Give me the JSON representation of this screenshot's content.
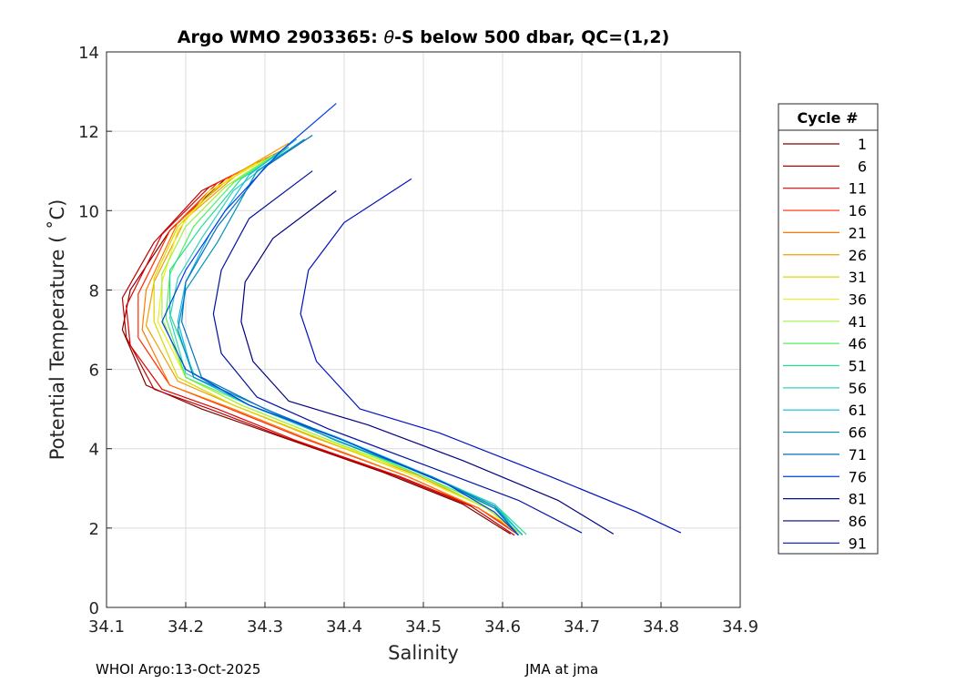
{
  "chart_data": {
    "type": "line",
    "title": "Argo WMO 2903365: θ-S below 500 dbar,  QC=(1,2)",
    "title_parts": [
      "Argo WMO 2903365: ",
      "θ",
      "-S below 500 dbar,  QC=(1,2)"
    ],
    "xlabel": "Salinity",
    "ylabel": "Potential Temperature ( ˚C)",
    "xlim": [
      34.1,
      34.9
    ],
    "ylim": [
      0,
      14
    ],
    "xticks": [
      "34.1",
      "34.2",
      "34.3",
      "34.4",
      "34.5",
      "34.6",
      "34.7",
      "34.8",
      "34.9"
    ],
    "yticks": [
      "0",
      "2",
      "4",
      "6",
      "8",
      "10",
      "12",
      "14"
    ],
    "grid": true,
    "legend": {
      "title": "Cycle #",
      "position": "right",
      "entries": [
        {
          "label": "1",
          "color": "#800000"
        },
        {
          "label": "6",
          "color": "#b80000"
        },
        {
          "label": "11",
          "color": "#e00000"
        },
        {
          "label": "16",
          "color": "#ff2a00"
        },
        {
          "label": "21",
          "color": "#ff7700"
        },
        {
          "label": "26",
          "color": "#f0a000"
        },
        {
          "label": "31",
          "color": "#d8d800"
        },
        {
          "label": "36",
          "color": "#f0f020"
        },
        {
          "label": "41",
          "color": "#a0f040"
        },
        {
          "label": "46",
          "color": "#50f060"
        },
        {
          "label": "51",
          "color": "#20e090"
        },
        {
          "label": "56",
          "color": "#30d0c0"
        },
        {
          "label": "61",
          "color": "#10b8e0"
        },
        {
          "label": "66",
          "color": "#0090c0"
        },
        {
          "label": "71",
          "color": "#0070c0"
        },
        {
          "label": "76",
          "color": "#0040e0"
        },
        {
          "label": "81",
          "color": "#0010a0"
        },
        {
          "label": "86",
          "color": "#000080"
        },
        {
          "label": "91",
          "color": "#0010c0"
        }
      ]
    },
    "series": [
      {
        "name": "1",
        "color": "#800000",
        "points": [
          [
            34.32,
            11.5
          ],
          [
            34.25,
            10.8
          ],
          [
            34.18,
            9.5
          ],
          [
            34.13,
            8.0
          ],
          [
            34.12,
            7.0
          ],
          [
            34.15,
            5.6
          ],
          [
            34.22,
            5.0
          ],
          [
            34.32,
            4.3
          ],
          [
            34.45,
            3.4
          ],
          [
            34.55,
            2.6
          ],
          [
            34.61,
            1.85
          ]
        ]
      },
      {
        "name": "6",
        "color": "#b80000",
        "points": [
          [
            34.3,
            11.3
          ],
          [
            34.22,
            10.5
          ],
          [
            34.16,
            9.2
          ],
          [
            34.12,
            7.8
          ],
          [
            34.125,
            6.8
          ],
          [
            34.16,
            5.5
          ],
          [
            34.23,
            5.0
          ],
          [
            34.33,
            4.25
          ],
          [
            34.46,
            3.35
          ],
          [
            34.56,
            2.55
          ],
          [
            34.615,
            1.82
          ]
        ]
      },
      {
        "name": "11",
        "color": "#e00000",
        "points": [
          [
            34.31,
            11.4
          ],
          [
            34.23,
            10.6
          ],
          [
            34.17,
            9.4
          ],
          [
            34.125,
            7.6
          ],
          [
            34.13,
            6.6
          ],
          [
            34.17,
            5.5
          ],
          [
            34.24,
            5.0
          ],
          [
            34.34,
            4.2
          ],
          [
            34.47,
            3.3
          ],
          [
            34.57,
            2.5
          ],
          [
            34.62,
            1.83
          ]
        ]
      },
      {
        "name": "16",
        "color": "#ff2a00",
        "points": [
          [
            34.33,
            11.6
          ],
          [
            34.24,
            10.7
          ],
          [
            34.18,
            9.5
          ],
          [
            34.14,
            7.9
          ],
          [
            34.14,
            6.8
          ],
          [
            34.18,
            5.6
          ],
          [
            34.25,
            5.05
          ],
          [
            34.35,
            4.25
          ],
          [
            34.48,
            3.3
          ],
          [
            34.57,
            2.5
          ],
          [
            34.62,
            1.84
          ]
        ]
      },
      {
        "name": "21",
        "color": "#ff7700",
        "points": [
          [
            34.32,
            11.5
          ],
          [
            34.26,
            10.9
          ],
          [
            34.19,
            9.7
          ],
          [
            34.15,
            8.0
          ],
          [
            34.145,
            7.0
          ],
          [
            34.18,
            5.6
          ],
          [
            34.26,
            5.0
          ],
          [
            34.36,
            4.2
          ],
          [
            34.48,
            3.3
          ],
          [
            34.57,
            2.5
          ],
          [
            34.625,
            1.84
          ]
        ]
      },
      {
        "name": "26",
        "color": "#f0a000",
        "points": [
          [
            34.33,
            11.7
          ],
          [
            34.27,
            11.0
          ],
          [
            34.2,
            9.8
          ],
          [
            34.16,
            8.2
          ],
          [
            34.15,
            7.1
          ],
          [
            34.19,
            5.7
          ],
          [
            34.26,
            5.1
          ],
          [
            34.36,
            4.3
          ],
          [
            34.49,
            3.35
          ],
          [
            34.58,
            2.5
          ],
          [
            34.625,
            1.83
          ]
        ]
      },
      {
        "name": "31",
        "color": "#d8d800",
        "points": [
          [
            34.3,
            11.3
          ],
          [
            34.24,
            10.6
          ],
          [
            34.19,
            9.6
          ],
          [
            34.16,
            8.3
          ],
          [
            34.16,
            7.2
          ],
          [
            34.19,
            5.8
          ],
          [
            34.26,
            5.1
          ],
          [
            34.37,
            4.25
          ],
          [
            34.49,
            3.3
          ],
          [
            34.58,
            2.5
          ],
          [
            34.62,
            1.84
          ]
        ]
      },
      {
        "name": "36",
        "color": "#f0f020",
        "points": [
          [
            34.29,
            11.2
          ],
          [
            34.23,
            10.5
          ],
          [
            34.19,
            9.5
          ],
          [
            34.17,
            8.2
          ],
          [
            34.165,
            7.2
          ],
          [
            34.2,
            5.8
          ],
          [
            34.27,
            5.1
          ],
          [
            34.37,
            4.3
          ],
          [
            34.49,
            3.3
          ],
          [
            34.58,
            2.5
          ],
          [
            34.62,
            1.83
          ]
        ]
      },
      {
        "name": "41",
        "color": "#a0f040",
        "points": [
          [
            34.31,
            11.4
          ],
          [
            34.25,
            10.6
          ],
          [
            34.2,
            9.6
          ],
          [
            34.17,
            8.4
          ],
          [
            34.17,
            7.3
          ],
          [
            34.2,
            5.8
          ],
          [
            34.27,
            5.1
          ],
          [
            34.37,
            4.3
          ],
          [
            34.5,
            3.3
          ],
          [
            34.58,
            2.5
          ],
          [
            34.625,
            1.83
          ]
        ]
      },
      {
        "name": "46",
        "color": "#50f060",
        "points": [
          [
            34.32,
            11.5
          ],
          [
            34.26,
            10.7
          ],
          [
            34.21,
            9.6
          ],
          [
            34.18,
            8.4
          ],
          [
            34.175,
            7.3
          ],
          [
            34.2,
            5.8
          ],
          [
            34.28,
            5.1
          ],
          [
            34.38,
            4.3
          ],
          [
            34.5,
            3.3
          ],
          [
            34.59,
            2.5
          ],
          [
            34.625,
            1.84
          ]
        ]
      },
      {
        "name": "51",
        "color": "#20e090",
        "points": [
          [
            34.33,
            11.6
          ],
          [
            34.27,
            10.8
          ],
          [
            34.22,
            9.6
          ],
          [
            34.18,
            8.5
          ],
          [
            34.18,
            7.4
          ],
          [
            34.21,
            5.9
          ],
          [
            34.28,
            5.1
          ],
          [
            34.38,
            4.3
          ],
          [
            34.5,
            3.35
          ],
          [
            34.59,
            2.6
          ],
          [
            34.63,
            1.84
          ]
        ]
      },
      {
        "name": "56",
        "color": "#30d0c0",
        "points": [
          [
            34.33,
            11.6
          ],
          [
            34.26,
            10.5
          ],
          [
            34.22,
            9.3
          ],
          [
            34.19,
            8.3
          ],
          [
            34.18,
            7.3
          ],
          [
            34.2,
            5.9
          ],
          [
            34.28,
            5.1
          ],
          [
            34.38,
            4.3
          ],
          [
            34.51,
            3.3
          ],
          [
            34.59,
            2.6
          ],
          [
            34.625,
            1.82
          ]
        ]
      },
      {
        "name": "61",
        "color": "#10b8e0",
        "points": [
          [
            34.34,
            11.8
          ],
          [
            34.28,
            10.9
          ],
          [
            34.23,
            9.4
          ],
          [
            34.2,
            8.2
          ],
          [
            34.19,
            7.2
          ],
          [
            34.21,
            5.8
          ],
          [
            34.28,
            5.1
          ],
          [
            34.39,
            4.3
          ],
          [
            34.51,
            3.3
          ],
          [
            34.59,
            2.55
          ],
          [
            34.625,
            1.83
          ]
        ]
      },
      {
        "name": "66",
        "color": "#0090c0",
        "points": [
          [
            34.35,
            11.8
          ],
          [
            34.29,
            11.0
          ],
          [
            34.24,
            9.2
          ],
          [
            34.2,
            8.0
          ],
          [
            34.19,
            7.0
          ],
          [
            34.21,
            5.8
          ],
          [
            34.29,
            5.1
          ],
          [
            34.39,
            4.2
          ],
          [
            34.51,
            3.3
          ],
          [
            34.59,
            2.55
          ],
          [
            34.62,
            1.82
          ]
        ]
      },
      {
        "name": "71",
        "color": "#0070c0",
        "points": [
          [
            34.36,
            11.9
          ],
          [
            34.3,
            11.1
          ],
          [
            34.24,
            9.6
          ],
          [
            34.2,
            8.2
          ],
          [
            34.195,
            7.2
          ],
          [
            34.22,
            5.8
          ],
          [
            34.3,
            5.0
          ],
          [
            34.4,
            4.2
          ],
          [
            34.52,
            3.2
          ],
          [
            34.59,
            2.5
          ],
          [
            34.62,
            1.82
          ]
        ]
      },
      {
        "name": "76",
        "color": "#0040e0",
        "points": [
          [
            34.39,
            12.7
          ],
          [
            34.32,
            11.5
          ],
          [
            34.25,
            10.0
          ],
          [
            34.2,
            8.5
          ],
          [
            34.17,
            7.2
          ],
          [
            34.2,
            6.0
          ],
          [
            34.28,
            5.1
          ],
          [
            34.4,
            4.2
          ],
          [
            34.53,
            3.1
          ],
          [
            34.59,
            2.4
          ],
          [
            34.62,
            1.82
          ]
        ]
      },
      {
        "name": "81",
        "color": "#0010a0",
        "points": [
          [
            34.36,
            11.0
          ],
          [
            34.28,
            9.8
          ],
          [
            34.245,
            8.5
          ],
          [
            34.235,
            7.4
          ],
          [
            34.245,
            6.4
          ],
          [
            34.29,
            5.3
          ],
          [
            34.38,
            4.5
          ],
          [
            34.5,
            3.6
          ],
          [
            34.62,
            2.7
          ],
          [
            34.7,
            1.88
          ]
        ]
      },
      {
        "name": "86",
        "color": "#000080",
        "points": [
          [
            34.39,
            10.5
          ],
          [
            34.31,
            9.3
          ],
          [
            34.275,
            8.2
          ],
          [
            34.27,
            7.2
          ],
          [
            34.285,
            6.2
          ],
          [
            34.33,
            5.2
          ],
          [
            34.43,
            4.6
          ],
          [
            34.55,
            3.7
          ],
          [
            34.67,
            2.7
          ],
          [
            34.74,
            1.85
          ]
        ]
      },
      {
        "name": "91",
        "color": "#0010c0",
        "points": [
          [
            34.485,
            10.8
          ],
          [
            34.4,
            9.7
          ],
          [
            34.355,
            8.5
          ],
          [
            34.345,
            7.4
          ],
          [
            34.365,
            6.2
          ],
          [
            34.42,
            5.0
          ],
          [
            34.52,
            4.4
          ],
          [
            34.66,
            3.3
          ],
          [
            34.77,
            2.4
          ],
          [
            34.825,
            1.88
          ]
        ]
      }
    ]
  },
  "footer": {
    "left": "WHOI Argo:13-Oct-2025",
    "right": "JMA at jma"
  }
}
